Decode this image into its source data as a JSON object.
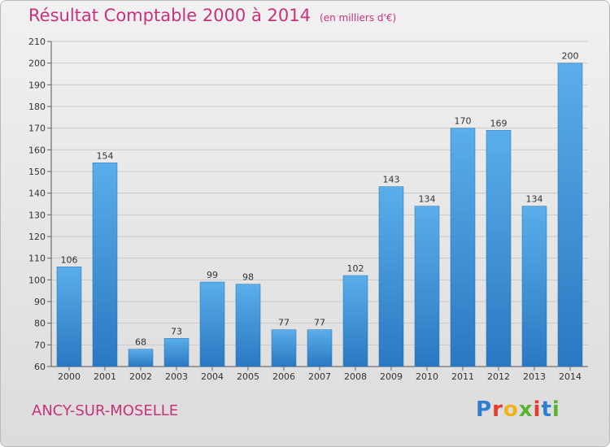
{
  "chart_data": {
    "type": "bar",
    "title": "Résultat Comptable 2000 à 2014",
    "subtitle": "(en milliers d'€)",
    "categories": [
      "2000",
      "2001",
      "2002",
      "2003",
      "2004",
      "2005",
      "2006",
      "2007",
      "2008",
      "2009",
      "2010",
      "2011",
      "2012",
      "2013",
      "2014"
    ],
    "values": [
      106,
      154,
      68,
      73,
      99,
      98,
      77,
      77,
      102,
      143,
      134,
      170,
      169,
      134,
      200
    ],
    "ylim": [
      60,
      210
    ],
    "yticks": [
      60,
      70,
      80,
      90,
      100,
      110,
      120,
      130,
      140,
      150,
      160,
      170,
      180,
      190,
      200,
      210
    ],
    "grid": true,
    "bar_color": "#3a8fd6"
  },
  "footer": {
    "commune": "ANCY-SUR-MOSELLE",
    "logo_letters": [
      {
        "ch": "P",
        "color": "#2f7fd1"
      },
      {
        "ch": "r",
        "color": "#e63b2e"
      },
      {
        "ch": "o",
        "color": "#f2b21b"
      },
      {
        "ch": "x",
        "color": "#58b530"
      },
      {
        "ch": "i",
        "color": "#e63b2e"
      },
      {
        "ch": "t",
        "color": "#2f7fd1"
      },
      {
        "ch": "i",
        "color": "#58b530"
      }
    ]
  },
  "colors": {
    "title": "#c8327a",
    "axis_text": "#333333",
    "grid": "#c9c9c9"
  }
}
